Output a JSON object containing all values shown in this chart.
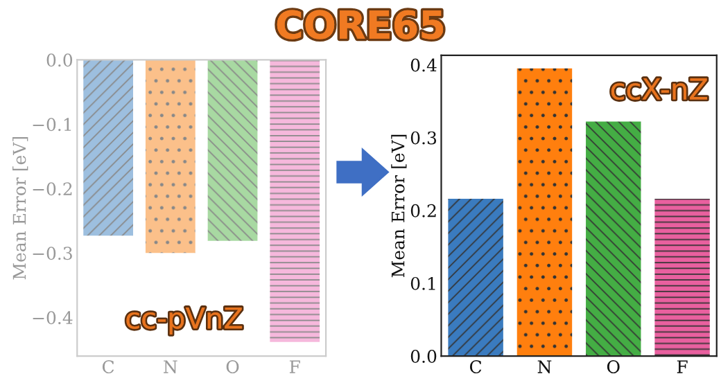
{
  "chart_data": [
    {
      "type": "bar",
      "title": "CORE65",
      "ylabel": "Mean Error [eV]",
      "categories": [
        "C",
        "N",
        "O",
        "F"
      ],
      "values": [
        -0.273,
        -0.3,
        -0.281,
        -0.438
      ],
      "colors": [
        "#9dbfdf",
        "#fbc08a",
        "#a8d9a2",
        "#f6b8dc"
      ],
      "ylim": [
        -0.46,
        0.0
      ],
      "yticks": [
        {
          "value": 0.0,
          "label": "0.0"
        },
        {
          "value": -0.1,
          "label": "−0.1"
        },
        {
          "value": -0.2,
          "label": "−0.2"
        },
        {
          "value": -0.3,
          "label": "−0.3"
        },
        {
          "value": -0.4,
          "label": "−0.4"
        }
      ],
      "annotations": [
        "cc-pVnZ"
      ],
      "grid": false,
      "legend": false
    },
    {
      "type": "bar",
      "ylabel": "Mean Error [eV]",
      "categories": [
        "C",
        "N",
        "O",
        "F"
      ],
      "values": [
        0.216,
        0.395,
        0.322,
        0.216
      ],
      "colors": [
        "#3a7bbf",
        "#ff7f0e",
        "#44ad44",
        "#e9609f"
      ],
      "ylim": [
        0.0,
        0.413
      ],
      "yticks": [
        {
          "value": 0.0,
          "label": "0.0"
        },
        {
          "value": 0.1,
          "label": "0.1"
        },
        {
          "value": 0.2,
          "label": "0.2"
        },
        {
          "value": 0.3,
          "label": "0.3"
        },
        {
          "value": 0.4,
          "label": "0.4"
        }
      ],
      "annotations": [
        "ccX-nZ"
      ],
      "grid": false,
      "legend": false
    }
  ]
}
